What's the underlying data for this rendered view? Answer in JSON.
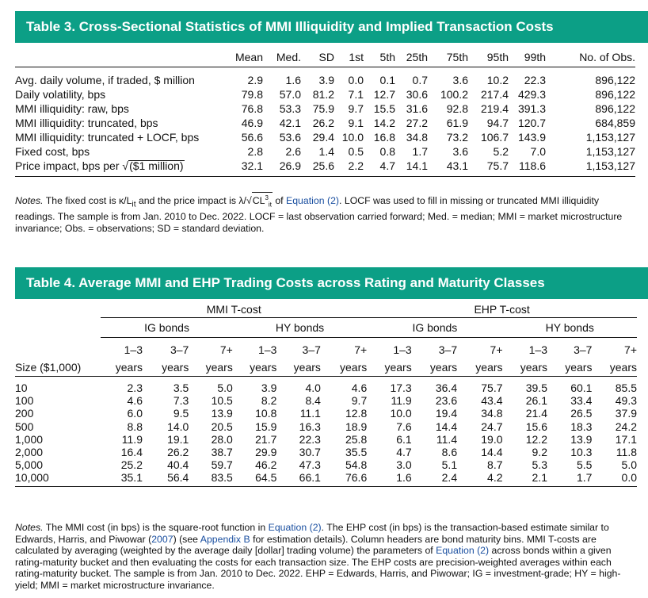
{
  "table3": {
    "title": "Table 3. Cross-Sectional Statistics of MMI Illiquidity and Implied Transaction Costs",
    "columns": [
      "Mean",
      "Med.",
      "SD",
      "1st",
      "5th",
      "25th",
      "75th",
      "95th",
      "99th",
      "No. of Obs."
    ],
    "rows": [
      {
        "label": "Avg. daily volume, if traded, $ million",
        "values": [
          "2.9",
          "1.6",
          "3.9",
          "0.0",
          "0.1",
          "0.7",
          "3.6",
          "10.2",
          "22.3",
          "896,122"
        ]
      },
      {
        "label": "Daily volatility, bps",
        "values": [
          "79.8",
          "57.0",
          "81.2",
          "7.1",
          "12.7",
          "30.6",
          "100.2",
          "217.4",
          "429.3",
          "896,122"
        ]
      },
      {
        "label": "MMI illiquidity: raw, bps",
        "values": [
          "76.8",
          "53.3",
          "75.9",
          "9.7",
          "15.5",
          "31.6",
          "92.8",
          "219.4",
          "391.3",
          "896,122"
        ]
      },
      {
        "label": "MMI illiquidity: truncated, bps",
        "values": [
          "46.9",
          "42.1",
          "26.2",
          "9.1",
          "14.2",
          "27.2",
          "61.9",
          "94.7",
          "120.7",
          "684,859"
        ]
      },
      {
        "label": "MMI illiquidity: truncated + LOCF, bps",
        "values": [
          "56.6",
          "53.6",
          "29.4",
          "10.0",
          "16.8",
          "34.8",
          "73.2",
          "106.7",
          "143.9",
          "1,153,127"
        ]
      },
      {
        "label": "Fixed cost, bps",
        "values": [
          "2.8",
          "2.6",
          "1.4",
          "0.5",
          "0.8",
          "1.7",
          "3.6",
          "5.2",
          "7.0",
          "1,153,127"
        ]
      },
      {
        "label_prefix": "Price impact, bps per ",
        "label_sqrt": "($1 million)",
        "values": [
          "32.1",
          "26.9",
          "25.6",
          "2.2",
          "4.7",
          "14.1",
          "43.1",
          "75.7",
          "118.6",
          "1,153,127"
        ]
      }
    ],
    "notes": {
      "lead": "Notes.",
      "p1": " The fixed cost is κ/L",
      "p1_sub": "it",
      "p2": " and the price impact is λ/",
      "p2_sqrt": "CL",
      "p2_sup": "3",
      "p2_sub": "it",
      "p3": " of ",
      "link": "Equation (2)",
      "p4": ". LOCF was used to fill in missing or truncated MMI illiquidity readings. The sample is from Jan. 2010 to Dec. 2022. LOCF = last observation carried forward; Med. = median; MMI = market microstructure invariance; Obs. = observations; SD = standard deviation."
    }
  },
  "table4": {
    "title": "Table 4. Average MMI and EHP Trading Costs across Rating and Maturity Classes",
    "groups": [
      "MMI T-cost",
      "EHP T-cost"
    ],
    "subgroups": [
      "IG bonds",
      "HY bonds",
      "IG bonds",
      "HY bonds"
    ],
    "maturities": [
      "1–3",
      "3–7",
      "7+",
      "1–3",
      "3–7",
      "7+",
      "1–3",
      "3–7",
      "7+",
      "1–3",
      "3–7",
      "7+"
    ],
    "years_label": "years",
    "size_label": "Size ($1,000)",
    "rows": [
      {
        "size": "10",
        "values": [
          "2.3",
          "3.5",
          "5.0",
          "3.9",
          "4.0",
          "4.6",
          "17.3",
          "36.4",
          "75.7",
          "39.5",
          "60.1",
          "85.5"
        ]
      },
      {
        "size": "100",
        "values": [
          "4.6",
          "7.3",
          "10.5",
          "8.2",
          "8.4",
          "9.7",
          "11.9",
          "23.6",
          "43.4",
          "26.1",
          "33.4",
          "49.3"
        ]
      },
      {
        "size": "200",
        "values": [
          "6.0",
          "9.5",
          "13.9",
          "10.8",
          "11.1",
          "12.8",
          "10.0",
          "19.4",
          "34.8",
          "21.4",
          "26.5",
          "37.9"
        ]
      },
      {
        "size": "500",
        "values": [
          "8.8",
          "14.0",
          "20.5",
          "15.9",
          "16.3",
          "18.9",
          "7.6",
          "14.4",
          "24.7",
          "15.6",
          "18.3",
          "24.2"
        ]
      },
      {
        "size": "1,000",
        "values": [
          "11.9",
          "19.1",
          "28.0",
          "21.7",
          "22.3",
          "25.8",
          "6.1",
          "11.4",
          "19.0",
          "12.2",
          "13.9",
          "17.1"
        ]
      },
      {
        "size": "2,000",
        "values": [
          "16.4",
          "26.2",
          "38.7",
          "29.9",
          "30.7",
          "35.5",
          "4.7",
          "8.6",
          "14.4",
          "9.2",
          "10.3",
          "11.8"
        ]
      },
      {
        "size": "5,000",
        "values": [
          "25.2",
          "40.4",
          "59.7",
          "46.2",
          "47.3",
          "54.8",
          "3.0",
          "5.1",
          "8.7",
          "5.3",
          "5.5",
          "5.0"
        ]
      },
      {
        "size": "10,000",
        "values": [
          "35.1",
          "56.4",
          "83.5",
          "64.5",
          "66.1",
          "76.6",
          "1.6",
          "2.4",
          "4.2",
          "2.1",
          "1.7",
          "0.0"
        ]
      }
    ],
    "notes": {
      "lead": "Notes.",
      "p1": " The MMI cost (in bps) is the square-root function in ",
      "link1": "Equation (2)",
      "p2": ". The EHP cost (in bps) is the transaction-based estimate similar to Edwards, Harris, and Piwowar (",
      "link2": "2007",
      "p3": ") (see ",
      "link3": "Appendix B",
      "p4": " for estimation details). Column headers are bond maturity bins. MMI T-costs are calculated by averaging (weighted by the average daily [dollar] trading volume) the parameters of ",
      "link4": "Equation (2)",
      "p5": " across bonds within a given rating-maturity bucket and then evaluating the costs for each transaction size. The EHP costs are precision-weighted averages within each rating-maturity bucket. The sample is from Jan. 2010 to Dec. 2022. EHP = Edwards, Harris, and Piwowar; IG = investment-grade; HY = high-yield; MMI = market microstructure invariance."
    }
  }
}
